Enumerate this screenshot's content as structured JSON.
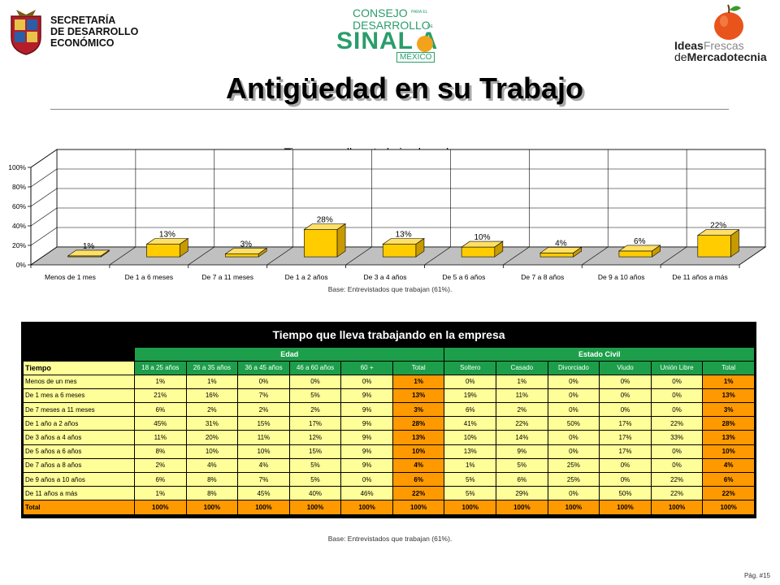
{
  "header": {
    "sec_lines": [
      "SECRETARÍA",
      "DE DESARROLLO",
      "ECONÓMICO"
    ],
    "consejo": {
      "line1": "CONSEJO",
      "line1_small": "PARA EL",
      "line2": "DESARROLLO",
      "line2_small": "DE",
      "name": "SINAL A",
      "country": "MÉXICO"
    },
    "ideas": {
      "ideas": "Ideas",
      "frescas": "Frescas",
      "de": "de",
      "mercado": "Mercadotecnia"
    },
    "page_title": "Antigüedad en su Trabajo"
  },
  "chart_data": {
    "type": "bar",
    "title": "Tiempo que lleva trabajando en la empresa",
    "xlabel": "",
    "ylabel": "",
    "categories": [
      "Menos de 1 mes",
      "De 1 a 6 meses",
      "De 7 a 11 meses",
      "De 1 a 2 años",
      "De 3 a 4 años",
      "De 5 a 6 años",
      "De 7 a 8 años",
      "De 9 a 10 años",
      "De 11 años a más"
    ],
    "values": [
      1,
      13,
      3,
      28,
      13,
      10,
      4,
      6,
      22
    ],
    "data_labels": [
      "1%",
      "13%",
      "3%",
      "28%",
      "13%",
      "10%",
      "4%",
      "6%",
      "22%"
    ],
    "ylim": [
      0,
      100
    ],
    "yticks": [
      "0%",
      "20%",
      "40%",
      "60%",
      "80%",
      "100%"
    ],
    "grid": true,
    "colors": {
      "bar_front": "#ffcc00",
      "bar_top": "#ffe066",
      "bar_side": "#c79a00",
      "wall": "#ffffff",
      "floor": "#c0c0c0"
    }
  },
  "base_note": "Base: Entrevistados que trabajan (61%).",
  "table": {
    "title": "Tiempo que lleva trabajando en la empresa",
    "groups": [
      "Edad",
      "Estado Civil"
    ],
    "row_header": "Tiempo",
    "columns": [
      "18 a 25 años",
      "26 a 35 años",
      "36 a 45 años",
      "46 a 60 años",
      "60 +",
      "Total",
      "Soltero",
      "Casado",
      "Divorciado",
      "Viudo",
      "Unión Libre",
      "Total"
    ],
    "rows": [
      {
        "label": "Menos de un mes",
        "cells": [
          "1%",
          "1%",
          "0%",
          "0%",
          "0%",
          "1%",
          "0%",
          "1%",
          "0%",
          "0%",
          "0%",
          "1%"
        ]
      },
      {
        "label": "De 1 mes a 6 meses",
        "cells": [
          "21%",
          "16%",
          "7%",
          "5%",
          "9%",
          "13%",
          "19%",
          "11%",
          "0%",
          "0%",
          "0%",
          "13%"
        ]
      },
      {
        "label": "De 7 meses a 11 meses",
        "cells": [
          "6%",
          "2%",
          "2%",
          "2%",
          "9%",
          "3%",
          "6%",
          "2%",
          "0%",
          "0%",
          "0%",
          "3%"
        ]
      },
      {
        "label": "De 1 año a 2 años",
        "cells": [
          "45%",
          "31%",
          "15%",
          "17%",
          "9%",
          "28%",
          "41%",
          "22%",
          "50%",
          "17%",
          "22%",
          "28%"
        ]
      },
      {
        "label": "De 3 años a 4 años",
        "cells": [
          "11%",
          "20%",
          "11%",
          "12%",
          "9%",
          "13%",
          "10%",
          "14%",
          "0%",
          "17%",
          "33%",
          "13%"
        ]
      },
      {
        "label": "De 5 años a 6 años",
        "cells": [
          "8%",
          "10%",
          "10%",
          "15%",
          "9%",
          "10%",
          "13%",
          "9%",
          "0%",
          "17%",
          "0%",
          "10%"
        ]
      },
      {
        "label": "De 7 años a 8 años",
        "cells": [
          "2%",
          "4%",
          "4%",
          "5%",
          "9%",
          "4%",
          "1%",
          "5%",
          "25%",
          "0%",
          "0%",
          "4%"
        ]
      },
      {
        "label": "De 9 años a 10 años",
        "cells": [
          "6%",
          "8%",
          "7%",
          "5%",
          "0%",
          "6%",
          "5%",
          "6%",
          "25%",
          "0%",
          "22%",
          "6%"
        ]
      },
      {
        "label": "De 11 años a más",
        "cells": [
          "1%",
          "8%",
          "45%",
          "40%",
          "46%",
          "22%",
          "5%",
          "29%",
          "0%",
          "50%",
          "22%",
          "22%"
        ]
      }
    ],
    "total_row": {
      "label": "Total",
      "cells": [
        "100%",
        "100%",
        "100%",
        "100%",
        "100%",
        "100%",
        "100%",
        "100%",
        "100%",
        "100%",
        "100%",
        "100%"
      ]
    }
  },
  "page_number": "Pág. #15"
}
